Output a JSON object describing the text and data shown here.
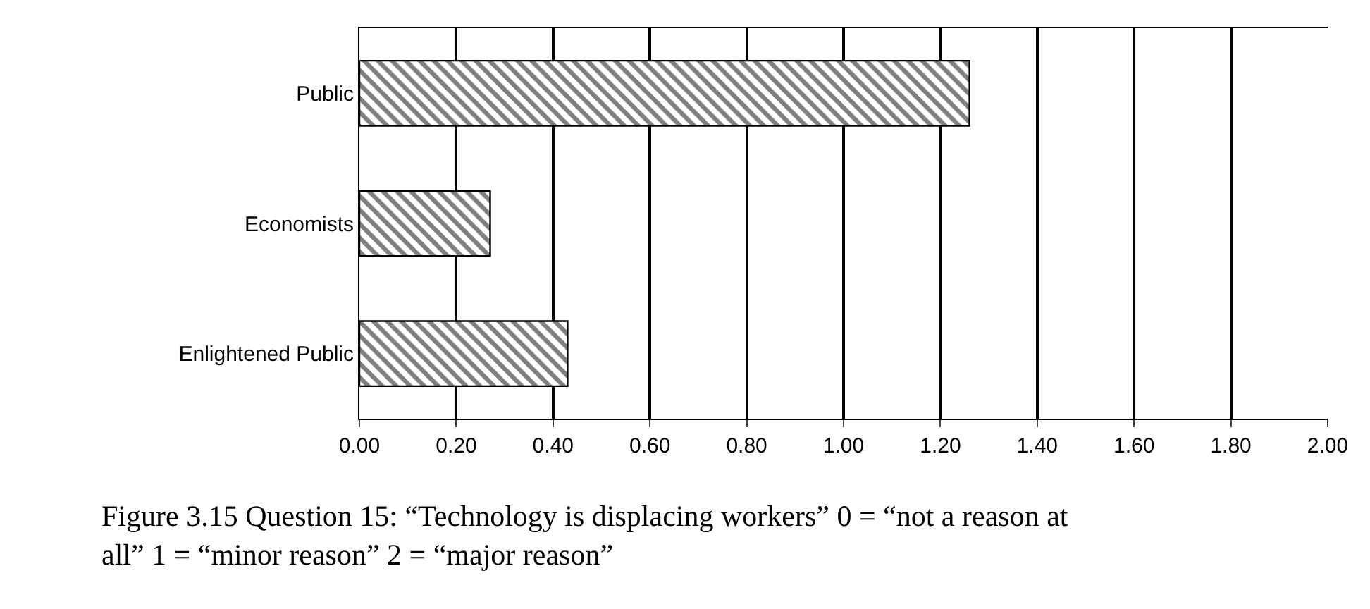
{
  "chart_data": {
    "type": "bar",
    "orientation": "horizontal",
    "categories": [
      "Public",
      "Economists",
      "Enlightened Public"
    ],
    "values": [
      1.26,
      0.27,
      0.43
    ],
    "color": "#000000",
    "xlim": [
      0,
      2
    ],
    "xticks": [
      {
        "value": 0,
        "label": "0.00"
      },
      {
        "value": 0.2,
        "label": "0.20"
      },
      {
        "value": 0.4,
        "label": "0.40"
      },
      {
        "value": 0.6,
        "label": "0.60"
      },
      {
        "value": 0.8,
        "label": "0.80"
      },
      {
        "value": 1.0,
        "label": "1.00"
      },
      {
        "value": 1.2,
        "label": "1.20"
      },
      {
        "value": 1.4,
        "label": "1.40"
      },
      {
        "value": 1.6,
        "label": "1.60"
      },
      {
        "value": 1.8,
        "label": "1.80"
      },
      {
        "value": 2.0,
        "label": "2.00"
      }
    ],
    "grid": "x",
    "annotations": [
      "Figure 3.15 Question 15: “Technology is displacing workers” 0 = “not a reason at all” 1 = “minor reason” 2 = “major reason”"
    ]
  }
}
